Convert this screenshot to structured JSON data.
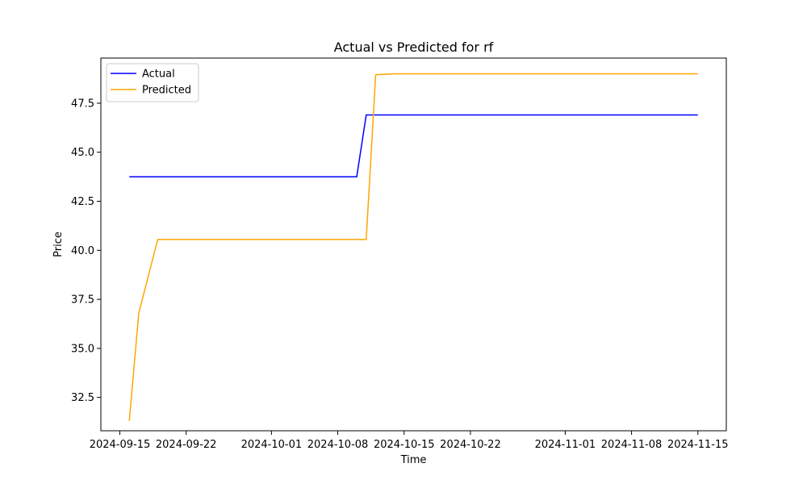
{
  "chart_data": {
    "type": "line",
    "title": "Actual vs Predicted for rf",
    "xlabel": "Time",
    "ylabel": "Price",
    "xlim": [
      "2024-09-13",
      "2024-11-18"
    ],
    "ylim": [
      30.8,
      49.8
    ],
    "x_ticks": [
      "2024-09-15",
      "2024-09-22",
      "2024-10-01",
      "2024-10-08",
      "2024-10-15",
      "2024-10-22",
      "2024-11-01",
      "2024-11-08",
      "2024-11-15"
    ],
    "y_ticks": [
      "32.5",
      "35.0",
      "37.5",
      "40.0",
      "42.5",
      "45.0",
      "47.5"
    ],
    "grid": false,
    "legend_position": "top-left",
    "series": [
      {
        "name": "Actual",
        "color": "#0000ff",
        "points": [
          {
            "x": "2024-09-16",
            "y": 43.75
          },
          {
            "x": "2024-10-10",
            "y": 43.75
          },
          {
            "x": "2024-10-11",
            "y": 46.9
          },
          {
            "x": "2024-11-15",
            "y": 46.9
          }
        ]
      },
      {
        "name": "Predicted",
        "color": "#ffa500",
        "points": [
          {
            "x": "2024-09-16",
            "y": 31.3
          },
          {
            "x": "2024-09-17",
            "y": 36.8
          },
          {
            "x": "2024-09-19",
            "y": 40.55
          },
          {
            "x": "2024-10-11",
            "y": 40.55
          },
          {
            "x": "2024-10-12",
            "y": 48.95
          },
          {
            "x": "2024-10-14",
            "y": 49.0
          },
          {
            "x": "2024-11-15",
            "y": 49.0
          }
        ]
      }
    ]
  }
}
